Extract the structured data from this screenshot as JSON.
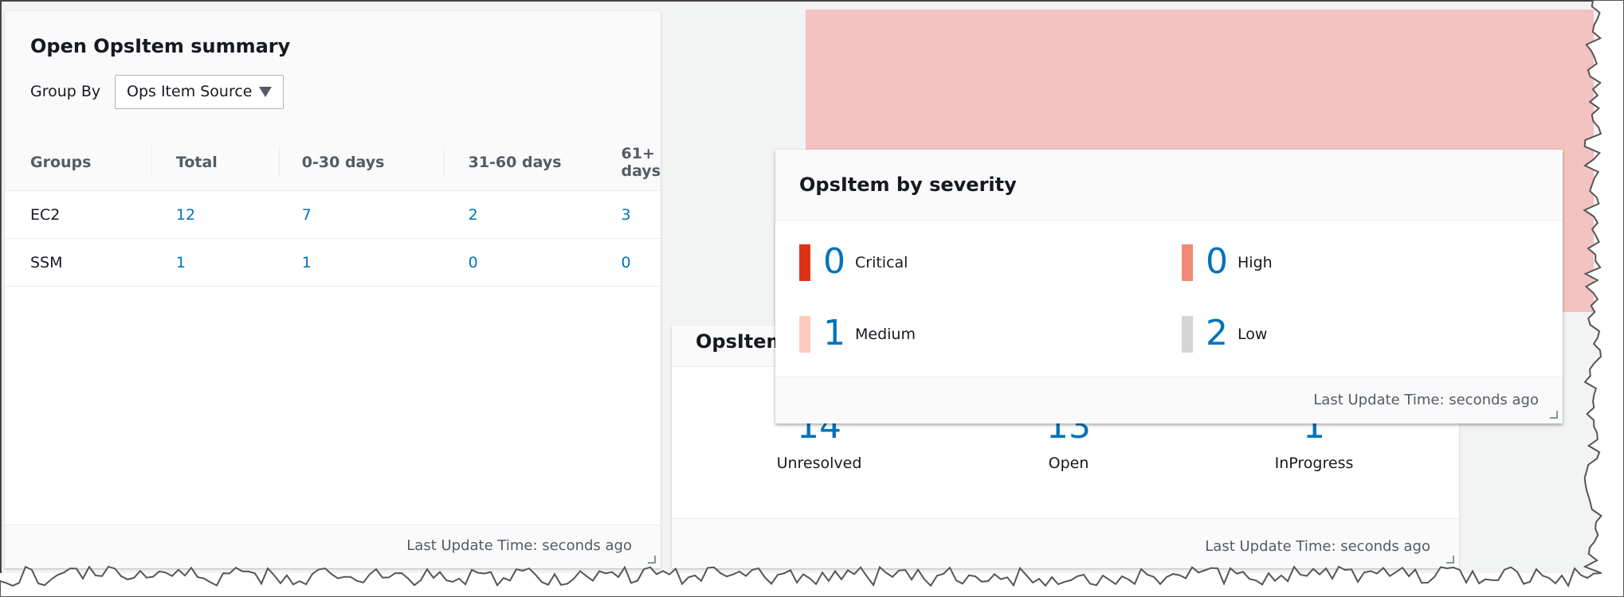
{
  "summary": {
    "title": "Open OpsItem summary",
    "group_by_label": "Group By",
    "group_by_value": "Ops Item Source",
    "columns": [
      "Groups",
      "Total",
      "0-30 days",
      "31-60 days",
      "61+ days"
    ],
    "rows": [
      [
        "EC2",
        "12",
        "7",
        "2",
        "3"
      ],
      [
        "SSM",
        "1",
        "1",
        "0",
        "0"
      ]
    ],
    "footer": "Last Update Time: seconds ago"
  },
  "status_card": {
    "title": "OpsItem",
    "items": [
      {
        "value": "14",
        "label": "Unresolved"
      },
      {
        "value": "13",
        "label": "Open"
      },
      {
        "value": "1",
        "label": "InProgress"
      }
    ],
    "footer": "Last Update Time: seconds ago"
  },
  "severity": {
    "title": "OpsItem by severity",
    "items": [
      {
        "value": "0",
        "label": "Critical",
        "color": "#dd3216"
      },
      {
        "value": "0",
        "label": "High",
        "color": "#f08a74"
      },
      {
        "value": "1",
        "label": "Medium",
        "color": "#fcc9bd"
      },
      {
        "value": "2",
        "label": "Low",
        "color": "#d5d5d5"
      }
    ],
    "footer": "Last Update Time: seconds ago"
  },
  "colors": {
    "link": "#0073bb",
    "drag_placeholder": "#f4c2c1",
    "background": "#f2f3f3"
  }
}
